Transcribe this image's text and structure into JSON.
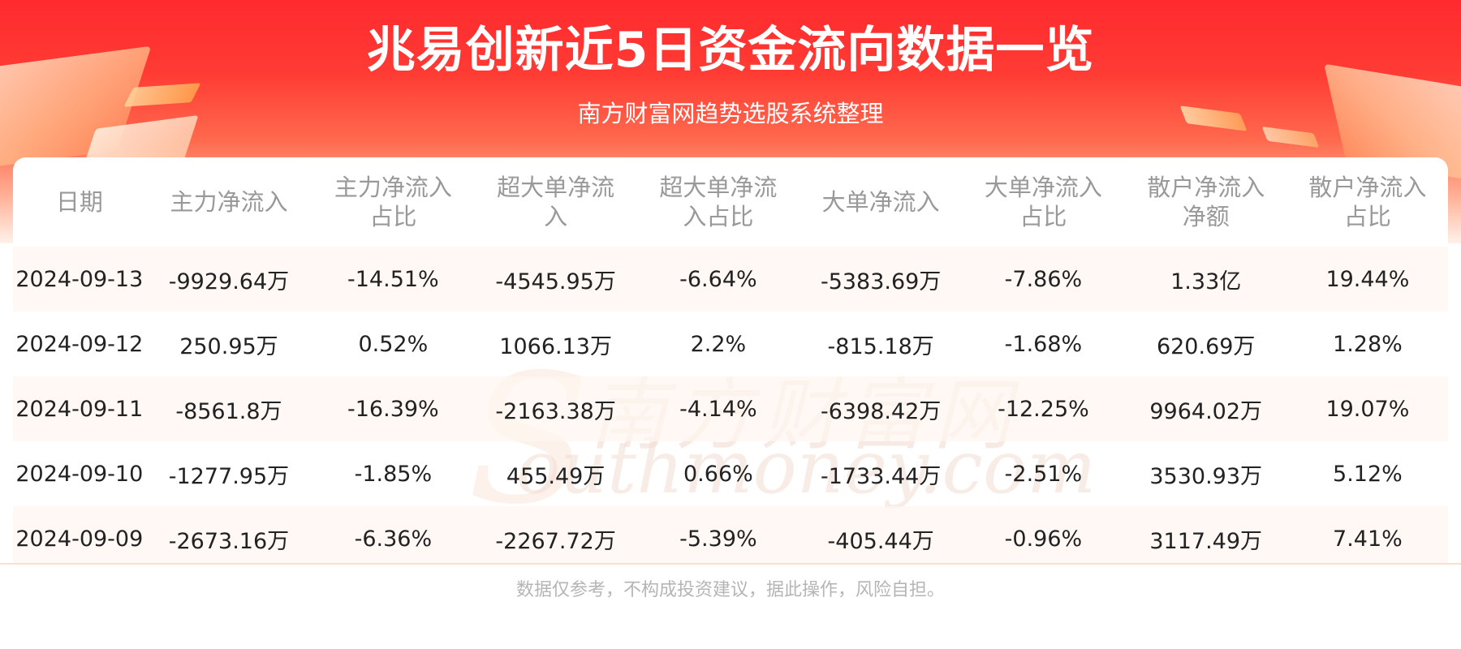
{
  "header": {
    "title": "兆易创新近5日资金流向数据一览",
    "subtitle": "南方财富网趋势选股系统整理"
  },
  "watermark": {
    "cn": "南方财富网",
    "en": "outhmoney.com",
    "s": "S"
  },
  "table": {
    "columns": [
      "日期",
      "主力净流入",
      "主力净流入\n占比",
      "超大单净流\n入",
      "超大单净流\n入占比",
      "大单净流入",
      "大单净流入\n占比",
      "散户净流入\n净额",
      "散户净流入\n占比"
    ],
    "rows": [
      [
        "2024-09-13",
        "-9929.64万",
        "-14.51%",
        "-4545.95万",
        "-6.64%",
        "-5383.69万",
        "-7.86%",
        "1.33亿",
        "19.44%"
      ],
      [
        "2024-09-12",
        "250.95万",
        "0.52%",
        "1066.13万",
        "2.2%",
        "-815.18万",
        "-1.68%",
        "620.69万",
        "1.28%"
      ],
      [
        "2024-09-11",
        "-8561.8万",
        "-16.39%",
        "-2163.38万",
        "-4.14%",
        "-6398.42万",
        "-12.25%",
        "9964.02万",
        "19.07%"
      ],
      [
        "2024-09-10",
        "-1277.95万",
        "-1.85%",
        "455.49万",
        "0.66%",
        "-1733.44万",
        "-2.51%",
        "3530.93万",
        "5.12%"
      ],
      [
        "2024-09-09",
        "-2673.16万",
        "-6.36%",
        "-2267.72万",
        "-5.39%",
        "-405.44万",
        "-0.96%",
        "3117.49万",
        "7.41%"
      ]
    ]
  },
  "footer": {
    "disclaimer": "数据仅参考，不构成投资建议，据此操作，风险自担。"
  },
  "colors": {
    "banner_red": "#ff2a2e",
    "header_text": "#999999",
    "cell_text": "#222222",
    "stripe": "#fff6f0",
    "disclaimer_text": "#b5b5b5"
  }
}
